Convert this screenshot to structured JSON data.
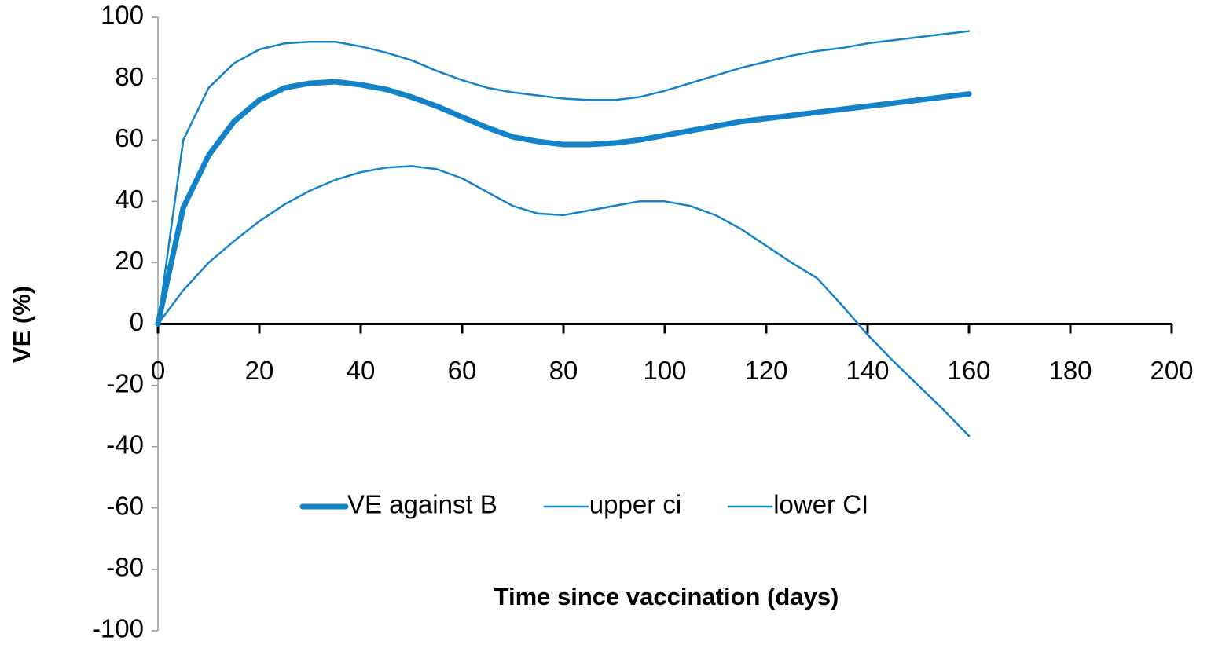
{
  "chart_data": {
    "type": "line",
    "xlabel": "Time since vaccination (days)",
    "ylabel": "VE (%)",
    "x": [
      0,
      5,
      10,
      15,
      20,
      25,
      30,
      35,
      40,
      45,
      50,
      55,
      60,
      65,
      70,
      75,
      80,
      85,
      90,
      95,
      100,
      105,
      110,
      115,
      120,
      125,
      130,
      135,
      140,
      145,
      150,
      155,
      160
    ],
    "series": [
      {
        "name": "VE against B",
        "color": "#1383c9",
        "width": 7,
        "values": [
          0,
          38,
          55,
          66,
          73,
          77,
          78.5,
          79,
          78,
          76.5,
          74,
          71,
          67.5,
          64,
          61,
          59.5,
          58.5,
          58.5,
          59,
          60,
          61.5,
          63,
          64.5,
          66,
          67,
          68,
          69,
          70,
          71,
          72,
          73,
          74,
          75
        ]
      },
      {
        "name": "upper ci",
        "color": "#1383c9",
        "width": 2.5,
        "values": [
          0,
          60,
          77,
          85,
          89.5,
          91.5,
          92,
          92,
          90.5,
          88.5,
          86,
          82.5,
          79.5,
          77,
          75.5,
          74.5,
          73.5,
          73,
          73,
          74,
          76,
          78.5,
          81,
          83.5,
          85.5,
          87.5,
          89,
          90,
          91.5,
          92.5,
          93.5,
          94.5,
          95.5
        ]
      },
      {
        "name": "lower CI",
        "color": "#1383c9",
        "width": 2.5,
        "values": [
          0,
          11,
          20,
          27,
          33.5,
          39,
          43.5,
          47,
          49.5,
          51,
          51.5,
          50.5,
          47.5,
          43,
          38.5,
          36,
          35.5,
          37,
          38.5,
          40,
          40,
          38.5,
          35.5,
          31,
          25.5,
          20,
          15,
          6,
          -3.5,
          -12,
          -20,
          -28,
          -36.5
        ]
      }
    ],
    "xlim": [
      0,
      200
    ],
    "xticks": [
      0,
      20,
      40,
      60,
      80,
      100,
      120,
      140,
      160,
      180,
      200
    ],
    "ylim": [
      -100,
      100
    ],
    "yticks": [
      -100,
      -80,
      -60,
      -40,
      -20,
      0,
      20,
      40,
      60,
      80,
      100
    ],
    "grid": false,
    "legend": "bottom"
  }
}
